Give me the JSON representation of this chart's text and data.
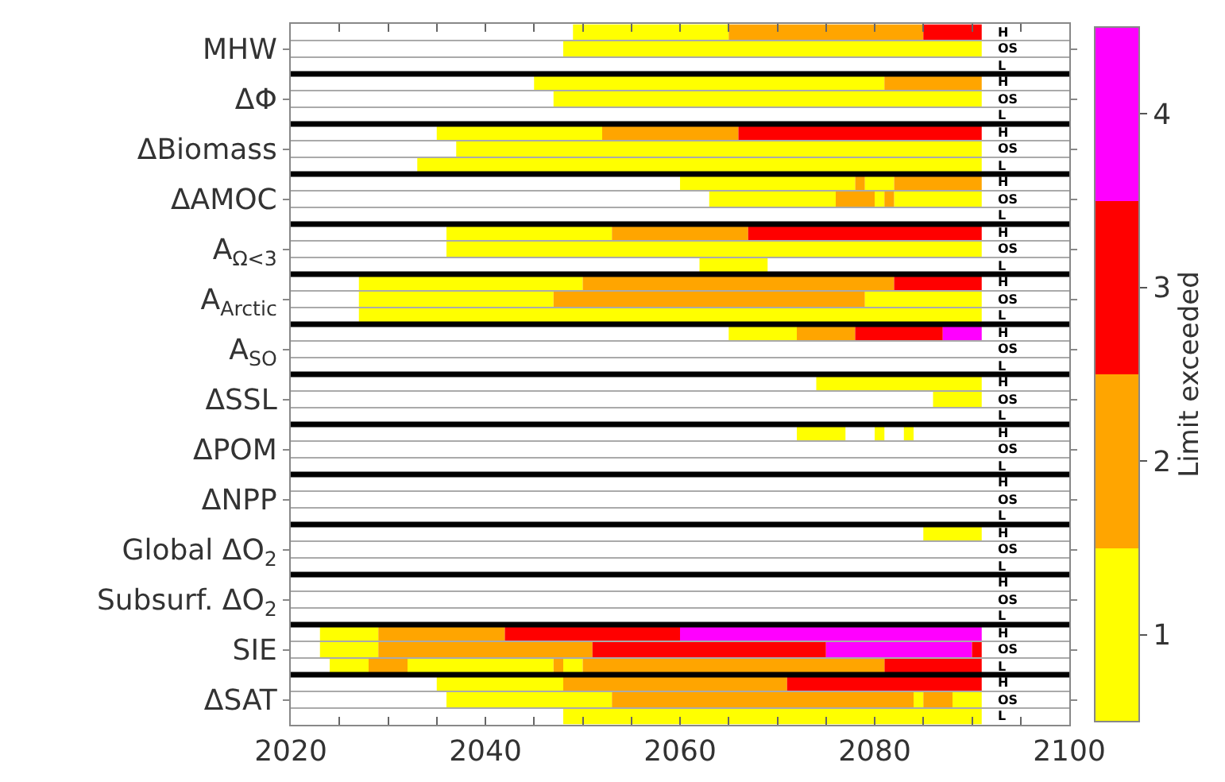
{
  "chart_data": {
    "type": "bar",
    "orientation": "horizontal",
    "xlim": [
      2020,
      2100
    ],
    "xticks": [
      2020,
      {
        "value": 2025,
        "label": null
      },
      {
        "value": 2030,
        "label": null
      },
      {
        "value": 2035,
        "label": null
      },
      2040,
      {
        "value": 2045,
        "label": null
      },
      {
        "value": 2050,
        "label": null
      },
      {
        "value": 2055,
        "label": null
      },
      2060,
      {
        "value": 2065,
        "label": null
      },
      {
        "value": 2070,
        "label": null
      },
      {
        "value": 2075,
        "label": null
      },
      2080,
      {
        "value": 2085,
        "label": null
      },
      {
        "value": 2090,
        "label": null
      },
      {
        "value": 2095,
        "label": null
      },
      2100
    ],
    "categories": [
      "H",
      "OS",
      "L",
      "H",
      "OS",
      "L",
      "H",
      "OS",
      "L",
      "H",
      "OS",
      "L",
      "H",
      "OS",
      "L",
      "H",
      "OS",
      "L",
      "H",
      "OS",
      "L",
      "H",
      "OS",
      "L",
      "H",
      "OS",
      "L",
      "H",
      "OS",
      "L",
      "H",
      "OS",
      "L",
      "H",
      "OS",
      "L",
      "H",
      "OS",
      "L",
      "H",
      "OS",
      "L"
    ],
    "annotations": [
      "MHW",
      "ΔΦ",
      "ΔBiomass",
      "ΔAMOC",
      "A$_{Ω<3}$",
      "A$_{Arctic}$",
      "A$_{SO}$",
      "ΔSSL",
      "ΔPOM",
      "ΔNPP",
      "Global ΔO$_{2}$",
      "Subsurf. ΔO$_{2}$",
      "SIE",
      "ΔSAT"
    ],
    "clabel": "Limit exceeded",
    "clim": [
      0.5,
      4.5
    ],
    "cticks": [
      1,
      2,
      3,
      4
    ],
    "grid": false,
    "series": [
      {
        "color": "#ffff00",
        "values": [
          16,
          43,
          null,
          36,
          44,
          null,
          17,
          54,
          58,
          18,
          13,
          null,
          17,
          55,
          7,
          23,
          20,
          64,
          7,
          null,
          null,
          17,
          5,
          null,
          5,
          null,
          null,
          null,
          null,
          null,
          6,
          null,
          null,
          null,
          null,
          null,
          6,
          6,
          4,
          13,
          17,
          43
        ],
        "base": [
          2049,
          2048,
          null,
          2045,
          2047,
          null,
          2035,
          2037,
          2033,
          2060,
          2063,
          null,
          2036,
          2036,
          2062,
          2027,
          2027,
          2027,
          2065,
          null,
          null,
          2074,
          2086,
          null,
          2072,
          null,
          null,
          null,
          null,
          null,
          2085,
          null,
          null,
          null,
          null,
          null,
          2023,
          2023,
          2024,
          2035,
          2036,
          2048
        ]
      },
      {
        "color": "#ffa500",
        "values": [
          20,
          null,
          null,
          10,
          null,
          null,
          14,
          null,
          null,
          1,
          4,
          null,
          14,
          null,
          null,
          32,
          32,
          null,
          6,
          null,
          null,
          null,
          null,
          null,
          null,
          null,
          null,
          null,
          null,
          null,
          null,
          null,
          null,
          null,
          null,
          null,
          13,
          22,
          4,
          23,
          31,
          null
        ],
        "base": [
          2065,
          null,
          null,
          2081,
          null,
          null,
          2052,
          null,
          null,
          2078,
          2076,
          null,
          2053,
          null,
          null,
          2050,
          2047,
          null,
          2072,
          null,
          null,
          null,
          null,
          null,
          null,
          null,
          null,
          null,
          null,
          null,
          null,
          null,
          null,
          null,
          null,
          null,
          2029,
          2029,
          2028,
          2048,
          2053,
          null
        ]
      },
      {
        "color": "#ff0000",
        "values": [
          6,
          null,
          null,
          null,
          null,
          null,
          25,
          null,
          null,
          null,
          null,
          null,
          24,
          null,
          null,
          9,
          null,
          null,
          9,
          null,
          null,
          null,
          null,
          null,
          null,
          null,
          null,
          null,
          null,
          null,
          null,
          null,
          null,
          null,
          null,
          null,
          18,
          24,
          10,
          20,
          null,
          null
        ],
        "base": [
          2085,
          null,
          null,
          null,
          null,
          null,
          2066,
          null,
          null,
          null,
          null,
          null,
          2067,
          null,
          null,
          2082,
          null,
          null,
          2078,
          null,
          null,
          null,
          null,
          null,
          null,
          null,
          null,
          null,
          null,
          null,
          null,
          null,
          null,
          null,
          null,
          null,
          2042,
          2051,
          2081,
          2071,
          null,
          null
        ]
      },
      {
        "color": "#ff00ff",
        "values": [
          null,
          null,
          null,
          null,
          null,
          null,
          null,
          null,
          null,
          null,
          null,
          null,
          null,
          null,
          null,
          null,
          null,
          null,
          4,
          null,
          null,
          null,
          null,
          null,
          null,
          null,
          null,
          null,
          null,
          null,
          null,
          null,
          null,
          null,
          null,
          null,
          31,
          15,
          null,
          null,
          null,
          null
        ],
        "base": [
          null,
          null,
          null,
          null,
          null,
          null,
          null,
          null,
          null,
          null,
          null,
          null,
          null,
          null,
          null,
          null,
          null,
          null,
          2087,
          null,
          null,
          null,
          null,
          null,
          null,
          null,
          null,
          null,
          null,
          null,
          null,
          null,
          null,
          null,
          null,
          null,
          2060,
          2075,
          null,
          null,
          null,
          null
        ]
      },
      {
        "color": "#ffff00",
        "values": [
          null,
          null,
          null,
          null,
          null,
          null,
          null,
          null,
          null,
          3,
          1,
          null,
          null,
          null,
          null,
          null,
          12,
          null,
          null,
          null,
          null,
          null,
          null,
          null,
          1,
          null,
          null,
          null,
          null,
          null,
          null,
          null,
          null,
          null,
          null,
          null,
          null,
          null,
          15,
          null,
          1,
          null
        ],
        "base": [
          null,
          null,
          null,
          null,
          null,
          null,
          null,
          null,
          null,
          2079,
          2080,
          null,
          null,
          null,
          null,
          null,
          2079,
          null,
          null,
          null,
          null,
          null,
          null,
          null,
          2080,
          null,
          null,
          null,
          null,
          null,
          null,
          null,
          null,
          null,
          null,
          null,
          null,
          null,
          2032,
          null,
          2084,
          null
        ]
      },
      {
        "color": "#ffff00",
        "values": [
          null,
          null,
          null,
          null,
          null,
          null,
          null,
          null,
          null,
          null,
          9,
          null,
          null,
          null,
          null,
          null,
          null,
          null,
          null,
          null,
          null,
          null,
          null,
          null,
          1,
          null,
          null,
          null,
          null,
          null,
          null,
          null,
          null,
          null,
          null,
          null,
          null,
          null,
          2,
          null,
          3,
          null
        ],
        "base": [
          null,
          null,
          null,
          null,
          null,
          null,
          null,
          null,
          null,
          null,
          2082,
          null,
          null,
          null,
          null,
          null,
          null,
          null,
          null,
          null,
          null,
          null,
          null,
          null,
          2083,
          null,
          null,
          null,
          null,
          null,
          null,
          null,
          null,
          null,
          null,
          null,
          null,
          null,
          2048,
          null,
          2088,
          null
        ]
      },
      {
        "color": "#ffa500",
        "values": [
          null,
          null,
          null,
          null,
          null,
          null,
          null,
          null,
          null,
          9,
          1,
          null,
          null,
          null,
          null,
          null,
          null,
          null,
          null,
          null,
          null,
          null,
          null,
          null,
          null,
          null,
          null,
          null,
          null,
          null,
          null,
          null,
          null,
          null,
          null,
          null,
          null,
          null,
          1,
          null,
          3,
          null
        ],
        "base": [
          null,
          null,
          null,
          null,
          null,
          null,
          null,
          null,
          null,
          2082,
          2081,
          null,
          null,
          null,
          null,
          null,
          null,
          null,
          null,
          null,
          null,
          null,
          null,
          null,
          null,
          null,
          null,
          null,
          null,
          null,
          null,
          null,
          null,
          null,
          null,
          null,
          null,
          null,
          2047,
          null,
          2085,
          null
        ]
      },
      {
        "color": "#ffa500",
        "values": [
          null,
          null,
          null,
          null,
          null,
          null,
          null,
          null,
          null,
          null,
          null,
          null,
          null,
          null,
          null,
          null,
          null,
          null,
          null,
          null,
          null,
          null,
          null,
          null,
          null,
          null,
          null,
          null,
          null,
          null,
          null,
          null,
          null,
          null,
          null,
          null,
          null,
          null,
          31,
          null,
          null,
          null
        ],
        "base": [
          null,
          null,
          null,
          null,
          null,
          null,
          null,
          null,
          null,
          null,
          null,
          null,
          null,
          null,
          null,
          null,
          null,
          null,
          null,
          null,
          null,
          null,
          null,
          null,
          null,
          null,
          null,
          null,
          null,
          null,
          null,
          null,
          null,
          null,
          null,
          null,
          null,
          null,
          2050,
          null,
          null,
          null
        ]
      },
      {
        "color": "#ff0000",
        "values": [
          null,
          null,
          null,
          null,
          null,
          null,
          null,
          null,
          null,
          null,
          null,
          null,
          null,
          null,
          null,
          null,
          null,
          null,
          null,
          null,
          null,
          null,
          null,
          null,
          null,
          null,
          null,
          null,
          null,
          null,
          null,
          null,
          null,
          null,
          null,
          null,
          null,
          1,
          null,
          null,
          null,
          null
        ],
        "base": [
          null,
          null,
          null,
          null,
          null,
          null,
          null,
          null,
          null,
          null,
          null,
          null,
          null,
          null,
          null,
          null,
          null,
          null,
          null,
          null,
          null,
          null,
          null,
          null,
          null,
          null,
          null,
          null,
          null,
          null,
          null,
          null,
          null,
          null,
          null,
          null,
          null,
          2090,
          null,
          null,
          null,
          null
        ]
      }
    ]
  }
}
